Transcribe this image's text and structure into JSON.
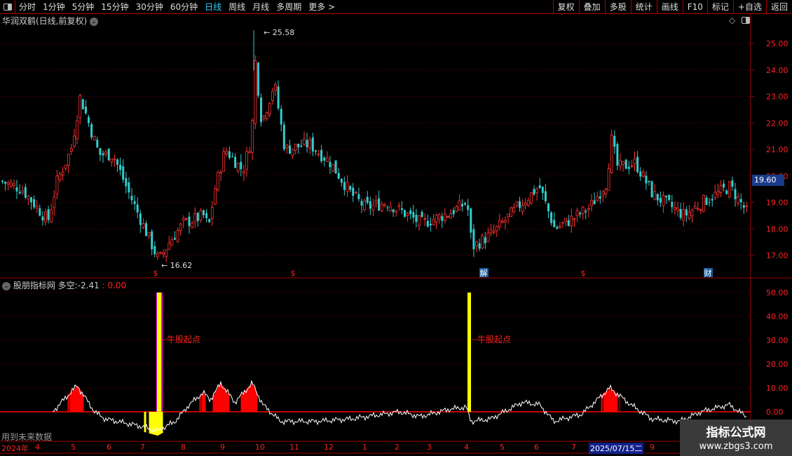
{
  "toolbar": {
    "periods": [
      "分时",
      "1分钟",
      "5分钟",
      "15分钟",
      "30分钟",
      "60分钟",
      "日线",
      "周线",
      "月线",
      "多周期",
      "更多 >"
    ],
    "active": "日线",
    "right": [
      "复权",
      "叠加",
      "多股",
      "统计",
      "画线",
      "F10",
      "标记",
      "+自选",
      "返回"
    ]
  },
  "stock": {
    "title": "华润双鹤(日线,前复权)",
    "current_price": "19.60",
    "high_label": "25.58",
    "low_label": "16.62"
  },
  "price_axis": {
    "ticks": [
      "25.00",
      "24.00",
      "23.00",
      "22.00",
      "21.00",
      "20.00",
      "19.00",
      "18.00",
      "17.00"
    ]
  },
  "indicator": {
    "name": "股朋指标网",
    "label": "多空:",
    "value": "-2.41",
    "value2": ": 0.00",
    "signal_text": "牛股起点",
    "ticks": [
      "50.00",
      "40.00",
      "30.00",
      "20.00",
      "10.00",
      "0.00"
    ]
  },
  "future_note": "用到未来数据",
  "event_markers": [
    "$",
    "$",
    "解",
    "$",
    "财"
  ],
  "time_axis": [
    "2024年",
    "4",
    "5",
    "6",
    "7",
    "8",
    "9",
    "10",
    "11",
    "12",
    "1",
    "2",
    "3",
    "4",
    "5",
    "6",
    "7",
    "2025/07/15二",
    "9"
  ],
  "watermark": {
    "title": "指标公式网",
    "url": "www.zbgs3.com"
  },
  "colors": {
    "up": "#ff3333",
    "down": "#33cccc",
    "indicator_line": "#ffffff",
    "signal": "#ffff00",
    "fill": "#ff0000",
    "grid": "#a00000"
  },
  "chart_data": [
    {
      "type": "candlestick",
      "title": "华润双鹤(日线,前复权)",
      "ylim": [
        16.5,
        25.8
      ],
      "approx_close_path": [
        19.8,
        19.5,
        18.3,
        19.8,
        21,
        23,
        22,
        20.8,
        20.8,
        19.5,
        18.3,
        16.8,
        17.5,
        18.2,
        18.5,
        18,
        19.5,
        21,
        20.2,
        21.5,
        24.5,
        22,
        23.5,
        21,
        21.2,
        20.5,
        19.3,
        18.8,
        19,
        18.2,
        18.6,
        19,
        17.3,
        17.8,
        18.9,
        19.6,
        18,
        18.3,
        18.8,
        19.8,
        21.5,
        20.3,
        20.5,
        19.3,
        18.5,
        19,
        19.6,
        18.6
      ],
      "high": 25.58,
      "low": 16.62,
      "last": 19.6
    },
    {
      "type": "line",
      "series": [
        {
          "name": "多空",
          "values": [
            0,
            11,
            0,
            -3,
            -6,
            -8,
            -4,
            3,
            8,
            5,
            12,
            4,
            12,
            3,
            -4,
            -4,
            -3,
            0,
            -2,
            1,
            2,
            -4,
            -3,
            4,
            3,
            -4,
            -1,
            10,
            3,
            -3,
            -4,
            0,
            3,
            -2
          ]
        }
      ],
      "signals": [
        {
          "label": "牛股起点",
          "value": 50
        },
        {
          "label": "牛股起点",
          "value": 50
        }
      ],
      "ylim": [
        -10,
        52
      ]
    }
  ]
}
